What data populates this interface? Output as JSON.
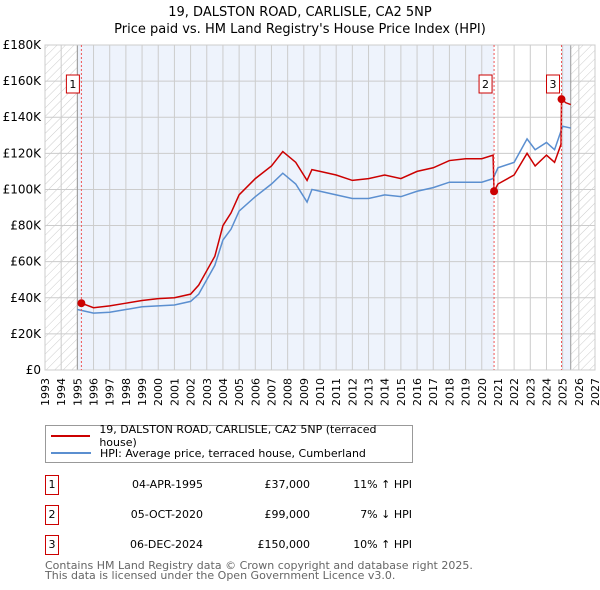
{
  "chart_data": {
    "type": "line",
    "title": "19, DALSTON ROAD, CARLISLE, CA2 5NP",
    "subtitle": "Price paid vs. HM Land Registry's House Price Index (HPI)",
    "xlim": [
      1993,
      2027
    ],
    "ylim": [
      0,
      180000
    ],
    "x_ticks": [
      "1993",
      "1994",
      "1995",
      "1996",
      "1997",
      "1998",
      "1999",
      "2000",
      "2001",
      "2002",
      "2003",
      "2004",
      "2005",
      "2006",
      "2007",
      "2008",
      "2009",
      "2010",
      "2011",
      "2012",
      "2013",
      "2014",
      "2015",
      "2016",
      "2017",
      "2018",
      "2019",
      "2020",
      "2021",
      "2022",
      "2023",
      "2024",
      "2025",
      "2026",
      "2027"
    ],
    "y_ticks": [
      {
        "v": 0,
        "l": "£0"
      },
      {
        "v": 20000,
        "l": "£20K"
      },
      {
        "v": 40000,
        "l": "£40K"
      },
      {
        "v": 60000,
        "l": "£60K"
      },
      {
        "v": 80000,
        "l": "£80K"
      },
      {
        "v": 100000,
        "l": "£100K"
      },
      {
        "v": 120000,
        "l": "£120K"
      },
      {
        "v": 140000,
        "l": "£140K"
      },
      {
        "v": 160000,
        "l": "£160K"
      },
      {
        "v": 180000,
        "l": "£180K"
      }
    ],
    "grid": true,
    "series": [
      {
        "name": "19, DALSTON ROAD, CARLISLE, CA2 5NP (terraced house)",
        "color": "#cc0000",
        "x": [
          1995.25,
          1996,
          1997,
          1998,
          1999,
          2000,
          2001,
          2002,
          2002.5,
          2003,
          2003.5,
          2004,
          2004.5,
          2005,
          2006,
          2007,
          2007.7,
          2008.5,
          2009.2,
          2009.5,
          2010,
          2011,
          2012,
          2013,
          2014,
          2015,
          2016,
          2017,
          2018,
          2019,
          2020,
          2020.7,
          2020.76,
          2021,
          2022,
          2022.8,
          2023.3,
          2024,
          2024.5,
          2024.9,
          2024.93,
          2025.2,
          2025.5
        ],
        "y": [
          37000,
          34500,
          35500,
          37000,
          38500,
          39500,
          40000,
          42000,
          47000,
          55000,
          63000,
          80000,
          87000,
          97000,
          106000,
          113000,
          121000,
          115000,
          105000,
          111000,
          110000,
          108000,
          105000,
          106000,
          108000,
          106000,
          110000,
          112000,
          116000,
          117000,
          117000,
          119000,
          99000,
          103000,
          108000,
          120000,
          113000,
          119000,
          115000,
          125000,
          150000,
          148000,
          147000
        ]
      },
      {
        "name": "HPI: Average price, terraced house, Cumberland",
        "color": "#5b8fd0",
        "x": [
          1995,
          1996,
          1997,
          1998,
          1999,
          2000,
          2001,
          2002,
          2002.5,
          2003,
          2003.5,
          2004,
          2004.5,
          2005,
          2006,
          2007,
          2007.7,
          2008.5,
          2009.2,
          2009.5,
          2010,
          2011,
          2012,
          2013,
          2014,
          2015,
          2016,
          2017,
          2018,
          2019,
          2020,
          2020.7,
          2021,
          2022,
          2022.8,
          2023.3,
          2024,
          2024.5,
          2025,
          2025.5
        ],
        "y": [
          33500,
          31500,
          32000,
          33500,
          35000,
          35500,
          36000,
          38000,
          42000,
          50000,
          58000,
          72000,
          78000,
          88000,
          96000,
          103000,
          109000,
          103000,
          93000,
          100000,
          99000,
          97000,
          95000,
          95000,
          97000,
          96000,
          99000,
          101000,
          104000,
          104000,
          104000,
          106000,
          112000,
          115000,
          128000,
          122000,
          126000,
          122000,
          135000,
          134000
        ]
      }
    ],
    "sales": [
      {
        "n": "1",
        "x": 1995.25,
        "y": 37000
      },
      {
        "n": "2",
        "x": 2020.76,
        "y": 99000
      },
      {
        "n": "3",
        "x": 2024.93,
        "y": 150000
      }
    ]
  },
  "legend": {
    "property": "19, DALSTON ROAD, CARLISLE, CA2 5NP (terraced house)",
    "hpi": "HPI: Average price, terraced house, Cumberland"
  },
  "transactions": [
    {
      "n": "1",
      "date": "04-APR-1995",
      "price": "£37,000",
      "hpi": "11% ↑ HPI"
    },
    {
      "n": "2",
      "date": "05-OCT-2020",
      "price": "£99,000",
      "hpi": "7% ↓ HPI"
    },
    {
      "n": "3",
      "date": "06-DEC-2024",
      "price": "£150,000",
      "hpi": "10% ↑ HPI"
    }
  ],
  "footer": {
    "line1": "Contains HM Land Registry data © Crown copyright and database right 2025.",
    "line2": "This data is licensed under the Open Government Licence v3.0."
  }
}
